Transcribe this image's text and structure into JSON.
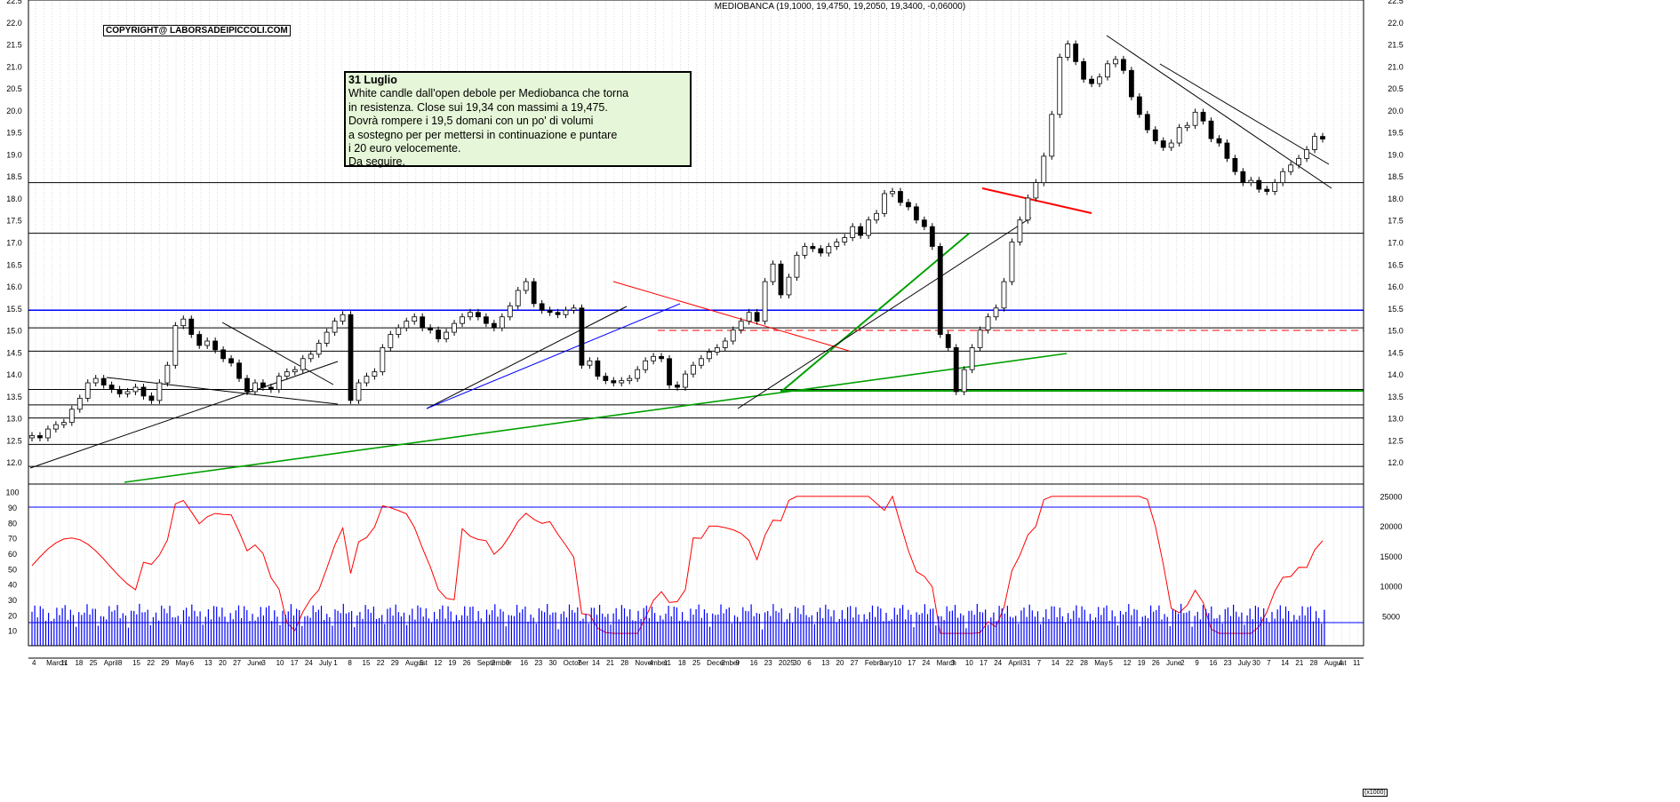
{
  "title": "MEDIOBANCA (19,1000, 19,4750, 19,2050, 19,3400, -0,06000)",
  "copyright": "COPYRIGHT@ LABORSADEIPICCOLI.COM",
  "note": {
    "date": "31 Luglio",
    "lines": [
      "White candle dall'open debole per Mediobanca che torna",
      "in resistenza. Close sui 19,34 con massimi a 19,475.",
      "Dovrà rompere i 19,5 domani con un po' di volumi",
      "a sostegno per per mettersi in continuazione e puntare",
      "i 20 euro velocemente.",
      "Da seguire."
    ]
  },
  "volume_unit": "(x1000)",
  "colors": {
    "resistance": "#0000ff",
    "support": "#00a000",
    "trend_down": "#ff0000",
    "rsi": "#ff0000",
    "volume": "#0000ff",
    "note_bg": "#e6f6d8"
  },
  "chart_data": {
    "type": "candlestick",
    "price_ylim": [
      11.5,
      22.5
    ],
    "price_ticks": [
      "12.0",
      "12.5",
      "13.0",
      "13.5",
      "14.0",
      "14.5",
      "15.0",
      "15.5",
      "16.0",
      "16.5",
      "17.0",
      "17.5",
      "18.0",
      "18.5",
      "19.0",
      "19.5",
      "20.0",
      "20.5",
      "21.0",
      "21.5",
      "22.0",
      "22.5"
    ],
    "rsi_ticks": [
      "10",
      "20",
      "30",
      "40",
      "50",
      "60",
      "70",
      "80",
      "90",
      "100"
    ],
    "volume_ticks": [
      "5000",
      "10000",
      "15000",
      "20000",
      "25000"
    ],
    "x_ticks": [
      "4",
      "March",
      "11",
      "18",
      "25",
      "April",
      "8",
      "15",
      "22",
      "29",
      "May",
      "6",
      "13",
      "20",
      "27",
      "June",
      "3",
      "10",
      "17",
      "24",
      "July",
      "1",
      "8",
      "15",
      "22",
      "29",
      "August",
      "5",
      "12",
      "19",
      "26",
      "September",
      "2",
      "9",
      "16",
      "23",
      "30",
      "October",
      "7",
      "14",
      "21",
      "28",
      "November",
      "4",
      "11",
      "18",
      "25",
      "December",
      "2",
      "9",
      "16",
      "23",
      "2025",
      "30",
      "6",
      "13",
      "20",
      "27",
      "February",
      "3",
      "10",
      "17",
      "24",
      "March",
      "3",
      "10",
      "17",
      "24",
      "April",
      "31",
      "7",
      "14",
      "22",
      "28",
      "May",
      "5",
      "12",
      "19",
      "26",
      "June",
      "2",
      "9",
      "16",
      "23",
      "July",
      "30",
      "7",
      "14",
      "21",
      "28",
      "August",
      "4",
      "11"
    ],
    "last_close": 19.34,
    "day_high": 19.475,
    "closes": [
      12.6,
      12.55,
      12.75,
      12.85,
      12.9,
      13.2,
      13.45,
      13.8,
      13.9,
      13.75,
      13.65,
      13.55,
      13.6,
      13.7,
      13.5,
      13.4,
      13.8,
      14.2,
      15.1,
      15.25,
      14.9,
      14.65,
      14.75,
      14.55,
      14.35,
      14.25,
      13.9,
      13.6,
      13.8,
      13.7,
      13.65,
      13.95,
      14.05,
      14.1,
      14.35,
      14.45,
      14.7,
      14.95,
      15.2,
      15.35,
      13.4,
      13.8,
      13.95,
      14.05,
      14.6,
      14.9,
      15.05,
      15.2,
      15.3,
      15.05,
      15.0,
      14.8,
      14.95,
      15.15,
      15.3,
      15.4,
      15.3,
      15.15,
      15.05,
      15.3,
      15.55,
      15.9,
      16.1,
      15.6,
      15.45,
      15.4,
      15.35,
      15.45,
      15.5,
      14.2,
      14.3,
      13.95,
      13.85,
      13.8,
      13.85,
      13.9,
      14.1,
      14.3,
      14.4,
      14.35,
      13.75,
      13.7,
      14.0,
      14.2,
      14.35,
      14.5,
      14.6,
      14.75,
      15.0,
      15.2,
      15.4,
      15.2,
      16.1,
      16.5,
      15.8,
      16.2,
      16.7,
      16.9,
      16.85,
      16.75,
      16.9,
      17.0,
      17.1,
      17.35,
      17.15,
      17.5,
      17.65,
      18.1,
      18.15,
      17.9,
      17.8,
      17.5,
      17.35,
      16.9,
      14.9,
      14.6,
      13.6,
      14.1,
      14.6,
      15.0,
      15.3,
      15.5,
      16.1,
      17.0,
      17.5,
      18.0,
      18.35,
      18.95,
      19.9,
      21.2,
      21.5,
      21.1,
      20.7,
      20.6,
      20.75,
      21.05,
      21.15,
      20.9,
      20.3,
      19.9,
      19.55,
      19.3,
      19.15,
      19.25,
      19.6,
      19.65,
      19.95,
      19.75,
      19.35,
      19.25,
      18.9,
      18.6,
      18.35,
      18.4,
      18.2,
      18.15,
      18.35,
      18.6,
      18.75,
      18.9,
      19.1,
      19.4,
      19.34
    ],
    "support_levels": [
      11.9,
      12.4,
      13.0,
      13.3,
      13.65,
      14.52,
      15.05,
      17.2,
      18.35
    ],
    "resistance_level": 15.45,
    "rsi_levels": [
      90,
      15
    ]
  }
}
